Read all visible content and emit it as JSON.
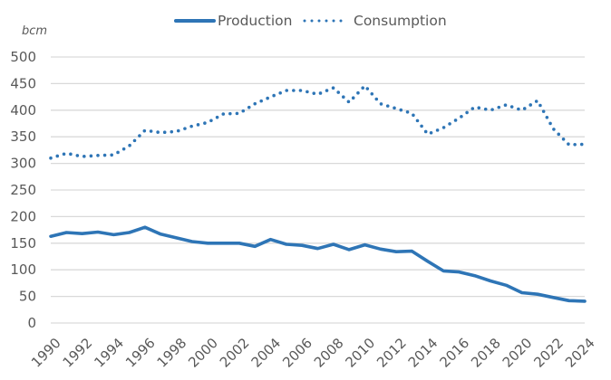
{
  "chart_data": {
    "type": "line",
    "title": "",
    "xlabel": "",
    "ylabel": "bcm",
    "ylim": [
      0,
      500
    ],
    "ytick_step": 50,
    "yticks": [
      "0",
      "50",
      "100",
      "150",
      "200",
      "250",
      "300",
      "350",
      "400",
      "450",
      "500"
    ],
    "xticks": [
      "1990",
      "1992",
      "1994",
      "1996",
      "1998",
      "2000",
      "2002",
      "2004",
      "2006",
      "2008",
      "2010",
      "2012",
      "2014",
      "2016",
      "2018",
      "2020",
      "2022",
      "2024"
    ],
    "grid": true,
    "legend_position": "top-center",
    "x": [
      1990,
      1991,
      1992,
      1993,
      1994,
      1995,
      1996,
      1997,
      1998,
      1999,
      2000,
      2001,
      2002,
      2003,
      2004,
      2005,
      2006,
      2007,
      2008,
      2009,
      2010,
      2011,
      2012,
      2013,
      2014,
      2015,
      2016,
      2017,
      2018,
      2019,
      2020,
      2021,
      2022,
      2023,
      2024
    ],
    "series": [
      {
        "name": "Production",
        "style": "solid",
        "color": "#2e75b6",
        "values": [
          163,
          170,
          168,
          171,
          166,
          170,
          180,
          167,
          160,
          153,
          150,
          150,
          150,
          144,
          157,
          148,
          146,
          140,
          148,
          138,
          147,
          139,
          134,
          135,
          116,
          98,
          96,
          89,
          79,
          71,
          57,
          54,
          48,
          42,
          41
        ]
      },
      {
        "name": "Consumption",
        "style": "dotted",
        "color": "#2e75b6",
        "values": [
          310,
          319,
          313,
          315,
          316,
          333,
          362,
          358,
          360,
          370,
          377,
          393,
          394,
          412,
          425,
          437,
          437,
          430,
          442,
          415,
          446,
          412,
          403,
          394,
          355,
          367,
          385,
          406,
          400,
          410,
          400,
          418,
          365,
          335,
          336
        ]
      }
    ]
  },
  "colors": {
    "text": "#595959",
    "grid": "#d9d9d9"
  }
}
